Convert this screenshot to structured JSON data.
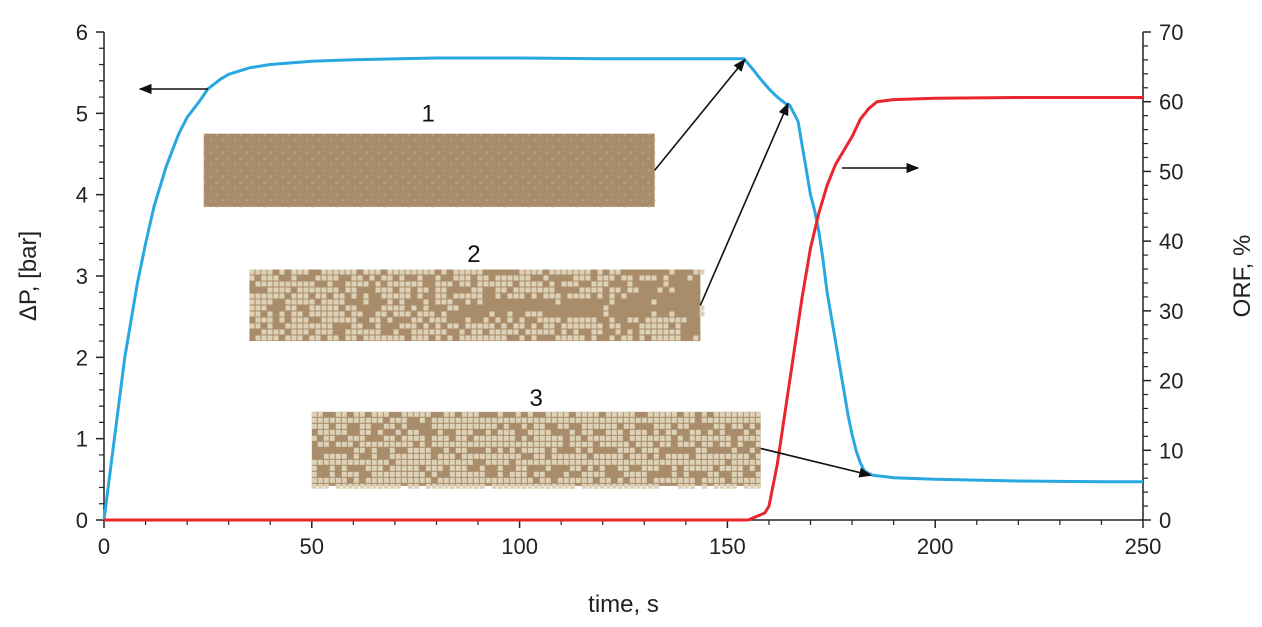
{
  "chart_data": {
    "type": "line",
    "title": "",
    "xlabel": "time, s",
    "ylabel_left": "ΔP, [bar]",
    "ylabel_right": "ORF, %",
    "xlim": [
      0,
      250
    ],
    "ylim_left": [
      0,
      6
    ],
    "ylim_right": [
      0,
      70
    ],
    "xticks": [
      "0",
      "50",
      "100",
      "150",
      "200",
      "250"
    ],
    "yticks_left": [
      "0",
      "1",
      "2",
      "3",
      "4",
      "5",
      "6"
    ],
    "yticks_right": [
      "0",
      "10",
      "20",
      "30",
      "40",
      "50",
      "60",
      "70"
    ],
    "grid": false,
    "legend": "none",
    "series": [
      {
        "axis": "left",
        "color": "#29a8e0",
        "points": [
          [
            0,
            0
          ],
          [
            2,
            0.8
          ],
          [
            5,
            2.0
          ],
          [
            8,
            2.9
          ],
          [
            10,
            3.4
          ],
          [
            12,
            3.85
          ],
          [
            15,
            4.35
          ],
          [
            18,
            4.75
          ],
          [
            20,
            4.95
          ],
          [
            23,
            5.15
          ],
          [
            25,
            5.3
          ],
          [
            28,
            5.42
          ],
          [
            30,
            5.48
          ],
          [
            35,
            5.56
          ],
          [
            40,
            5.6
          ],
          [
            50,
            5.64
          ],
          [
            60,
            5.66
          ],
          [
            80,
            5.68
          ],
          [
            100,
            5.68
          ],
          [
            120,
            5.67
          ],
          [
            140,
            5.67
          ],
          [
            154,
            5.67
          ],
          [
            156,
            5.55
          ],
          [
            158,
            5.42
          ],
          [
            160,
            5.3
          ],
          [
            162,
            5.2
          ],
          [
            164,
            5.12
          ],
          [
            165,
            5.1
          ],
          [
            166,
            5.0
          ],
          [
            167,
            4.9
          ],
          [
            168,
            4.6
          ],
          [
            169,
            4.3
          ],
          [
            170,
            4.0
          ],
          [
            171,
            3.8
          ],
          [
            172,
            3.55
          ],
          [
            173,
            3.2
          ],
          [
            174,
            2.8
          ],
          [
            175,
            2.5
          ],
          [
            176,
            2.2
          ],
          [
            177,
            1.9
          ],
          [
            178,
            1.6
          ],
          [
            179,
            1.3
          ],
          [
            180,
            1.05
          ],
          [
            181,
            0.85
          ],
          [
            182,
            0.7
          ],
          [
            183,
            0.6
          ],
          [
            185,
            0.55
          ],
          [
            190,
            0.52
          ],
          [
            200,
            0.5
          ],
          [
            220,
            0.48
          ],
          [
            240,
            0.47
          ],
          [
            250,
            0.47
          ]
        ]
      },
      {
        "axis": "right",
        "color": "#e8262b",
        "points": [
          [
            0,
            0
          ],
          [
            150,
            0
          ],
          [
            155,
            0
          ],
          [
            157,
            0.5
          ],
          [
            159,
            1
          ],
          [
            160,
            2
          ],
          [
            162,
            8
          ],
          [
            164,
            16
          ],
          [
            166,
            24
          ],
          [
            168,
            32
          ],
          [
            170,
            39
          ],
          [
            172,
            44
          ],
          [
            174,
            48
          ],
          [
            176,
            51
          ],
          [
            178,
            53
          ],
          [
            180,
            55
          ],
          [
            182,
            57.5
          ],
          [
            184,
            59
          ],
          [
            186,
            60
          ],
          [
            190,
            60.3
          ],
          [
            200,
            60.5
          ],
          [
            220,
            60.6
          ],
          [
            250,
            60.6
          ]
        ]
      }
    ],
    "insets": [
      {
        "label": "1",
        "kind": "uniform",
        "base": "#a98c69",
        "light": "#c9b38f",
        "fill": 0.0
      },
      {
        "label": "2",
        "kind": "partial",
        "base": "#a98c69",
        "light": "#ddd1b7",
        "fill": 0.55
      },
      {
        "label": "3",
        "kind": "full",
        "base": "#a98c69",
        "light": "#ddd1b7",
        "fill": 0.92
      }
    ]
  }
}
